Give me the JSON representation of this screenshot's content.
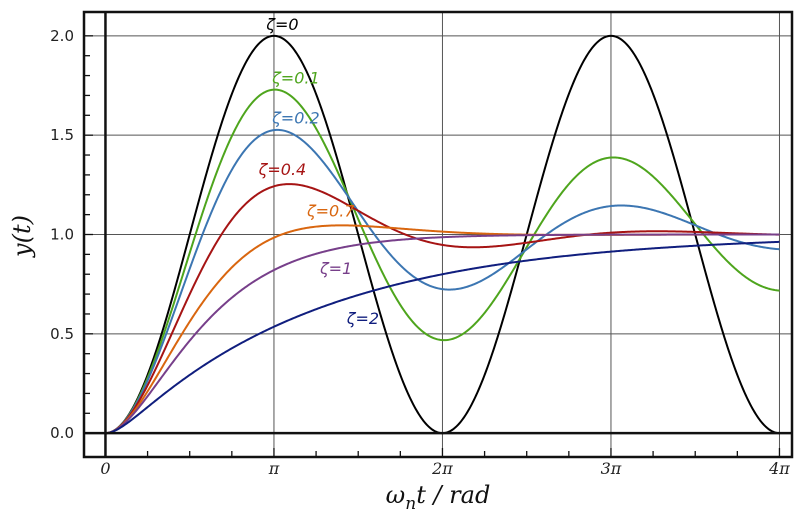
{
  "chart_data": {
    "type": "line",
    "xlabel": "ω",
    "xlabel_sub": "n",
    "xlabel_rest": "t / rad",
    "ylabel": "y(t)",
    "xlim": [
      -0.4,
      12.8
    ],
    "ylim": [
      -0.12,
      2.12
    ],
    "grid": true,
    "xticks": [
      {
        "value": 0,
        "label": "0"
      },
      {
        "value": 3.14159265,
        "label": "π"
      },
      {
        "value": 6.28318531,
        "label": "2π"
      },
      {
        "value": 9.42477796,
        "label": "3π"
      },
      {
        "value": 12.56637061,
        "label": "4π"
      }
    ],
    "yticks": [
      {
        "value": 0.0,
        "label": "0.0"
      },
      {
        "value": 0.5,
        "label": "0.5"
      },
      {
        "value": 1.0,
        "label": "1.0"
      },
      {
        "value": 1.5,
        "label": "1.5"
      },
      {
        "value": 2.0,
        "label": "2.0"
      }
    ],
    "x_range": [
      0,
      12.56637061
    ],
    "function": "unit step response of a second-order system, y(t) for ω_n t in [0, 4π]",
    "series": [
      {
        "name": "ζ=0",
        "zeta": 0,
        "color": "#000000",
        "label_at": [
          3.3,
          2.03
        ]
      },
      {
        "name": "ζ=0.1",
        "zeta": 0.1,
        "color": "#4ea51d",
        "label_at": [
          3.55,
          1.76
        ]
      },
      {
        "name": "ζ=0.2",
        "zeta": 0.2,
        "color": "#3c76b2",
        "label_at": [
          3.55,
          1.56
        ]
      },
      {
        "name": "ζ=0.4",
        "zeta": 0.4,
        "color": "#a61414",
        "label_at": [
          3.3,
          1.3
        ]
      },
      {
        "name": "ζ=0.7",
        "zeta": 0.7,
        "color": "#d9660f",
        "label_at": [
          4.2,
          1.09
        ]
      },
      {
        "name": "ζ=1",
        "zeta": 1,
        "color": "#773f8a",
        "label_at": [
          4.3,
          0.8
        ]
      },
      {
        "name": "ζ=2",
        "zeta": 2,
        "color": "#101e7e",
        "label_at": [
          4.8,
          0.55
        ]
      }
    ]
  }
}
